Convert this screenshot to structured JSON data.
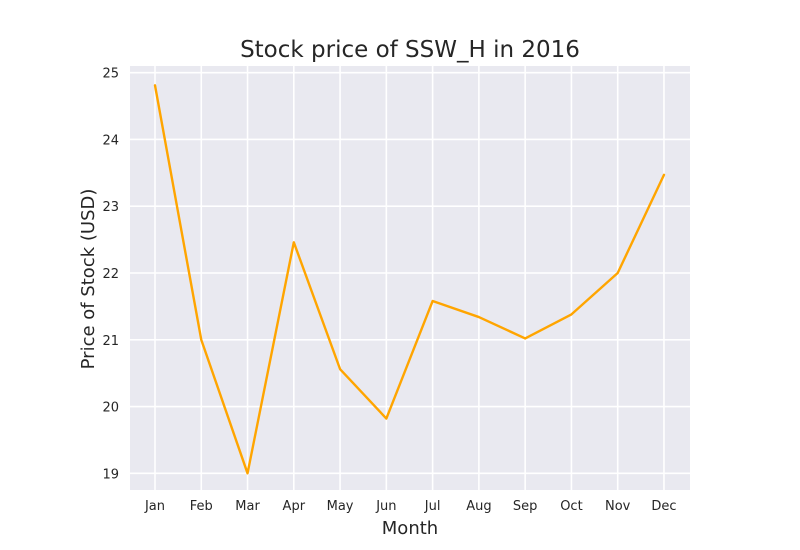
{
  "chart_data": {
    "type": "line",
    "title": "Stock price of SSW_H in 2016",
    "xlabel": "Month",
    "ylabel": "Price of Stock (USD)",
    "categories": [
      "Jan",
      "Feb",
      "Mar",
      "Apr",
      "May",
      "Jun",
      "Jul",
      "Aug",
      "Sep",
      "Oct",
      "Nov",
      "Dec"
    ],
    "series": [
      {
        "values": [
          24.81,
          21.0,
          19.0,
          22.46,
          20.56,
          19.82,
          21.58,
          21.34,
          21.02,
          21.38,
          22.0,
          23.47
        ],
        "color": "#ffa500"
      }
    ],
    "ylim": [
      18.75,
      25.1
    ],
    "yticks": [
      19,
      20,
      21,
      22,
      23,
      24,
      25
    ],
    "grid": true,
    "legend": "none",
    "colors": {
      "plot_background": "#e9e9f0",
      "grid": "#ffffff",
      "line": "#ffa500"
    }
  }
}
